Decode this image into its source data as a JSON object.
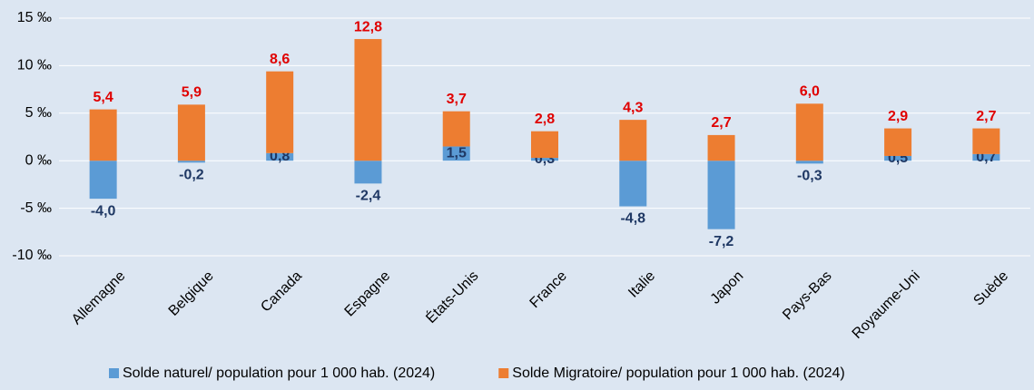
{
  "chart_data": {
    "type": "bar",
    "stacked": true,
    "categories": [
      "Allemagne",
      "Belgique",
      "Canada",
      "Espagne",
      "États-Unis",
      "France",
      "Italie",
      "Japon",
      "Pays-Bas",
      "Royaume-Uni",
      "Suède"
    ],
    "series": [
      {
        "name": "Solde naturel/ population pour 1 000 hab. (2024)",
        "color": "#5b9bd5",
        "values": [
          -4.0,
          -0.2,
          0.8,
          -2.4,
          1.5,
          0.3,
          -4.8,
          -7.2,
          -0.3,
          0.5,
          0.7
        ],
        "value_labels": [
          "-4,0",
          "-0,2",
          "0,8",
          "-2,4",
          "1,5",
          "0,3",
          "-4,8",
          "-7,2",
          "-0,3",
          "0,5",
          "0,7"
        ]
      },
      {
        "name": "Solde Migratoire/ population pour 1 000 hab. (2024)",
        "color": "#ed7d31",
        "values": [
          5.4,
          5.9,
          8.6,
          12.8,
          3.7,
          2.8,
          4.3,
          2.7,
          6.0,
          2.9,
          2.7
        ],
        "value_labels": [
          "5,4",
          "5,9",
          "8,6",
          "12,8",
          "3,7",
          "2,8",
          "4,3",
          "2,7",
          "6,0",
          "2,9",
          "2,7"
        ]
      }
    ],
    "ylim": [
      -10,
      15
    ],
    "yticks": [
      {
        "value": -10,
        "label": "-10 ‰"
      },
      {
        "value": -5,
        "label": "-5 ‰"
      },
      {
        "value": 0,
        "label": "0 ‰"
      },
      {
        "value": 5,
        "label": "5 ‰"
      },
      {
        "value": 10,
        "label": "10 ‰"
      },
      {
        "value": 15,
        "label": "15 ‰"
      }
    ],
    "grid": true,
    "legend": "bottom"
  }
}
